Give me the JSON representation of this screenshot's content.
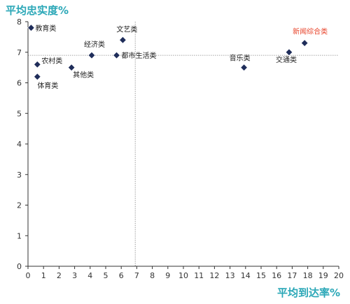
{
  "chart_data": {
    "type": "scatter",
    "ylabel": "平均忠实度%",
    "xlabel": "平均到达率%",
    "xlim": [
      0,
      20
    ],
    "ylim": [
      0,
      8
    ],
    "x_ticks": [
      0,
      1,
      2,
      3,
      4,
      5,
      6,
      7,
      8,
      9,
      10,
      11,
      12,
      13,
      14,
      15,
      16,
      17,
      18,
      19,
      20
    ],
    "y_ticks": [
      0,
      1,
      2,
      3,
      4,
      5,
      6,
      7,
      8
    ],
    "reference_lines": {
      "x": 6.9,
      "y": 6.9
    },
    "grid": false,
    "colors": {
      "marker": "#1f2d5a",
      "axis_title": "#2aa7b7",
      "highlight_label": "#e8452c",
      "reference_line": "#888888"
    },
    "points": [
      {
        "label": "教育类",
        "x": 0.2,
        "y": 7.8
      },
      {
        "label": "文艺类",
        "x": 6.1,
        "y": 7.4
      },
      {
        "label": "经济类",
        "x": 4.1,
        "y": 6.9
      },
      {
        "label": "都市生活类",
        "x": 5.7,
        "y": 6.9
      },
      {
        "label": "农村类",
        "x": 0.6,
        "y": 6.6
      },
      {
        "label": "其他类",
        "x": 2.8,
        "y": 6.5
      },
      {
        "label": "体育类",
        "x": 0.6,
        "y": 6.2
      },
      {
        "label": "音乐类",
        "x": 13.9,
        "y": 6.5
      },
      {
        "label": "交通类",
        "x": 16.8,
        "y": 7.0
      },
      {
        "label": "新闻综合类",
        "x": 17.8,
        "y": 7.3,
        "highlight": true
      }
    ]
  }
}
